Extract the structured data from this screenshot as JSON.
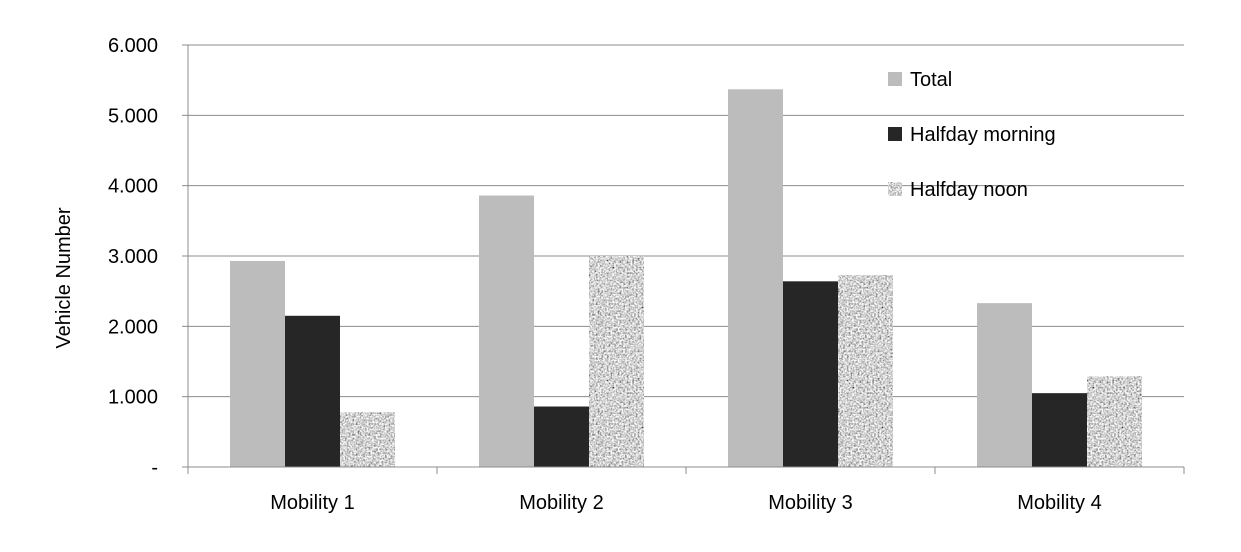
{
  "chart_data": {
    "type": "bar",
    "categories": [
      "Mobility 1",
      "Mobility 2",
      "Mobility 3",
      "Mobility 4"
    ],
    "series": [
      {
        "name": "Total",
        "values": [
          2930,
          3860,
          5370,
          2330
        ],
        "color": "#bcbcbc",
        "pattern": "solid"
      },
      {
        "name": "Halfday morning",
        "values": [
          2150,
          860,
          2640,
          1050
        ],
        "color": "#262626",
        "pattern": "solid"
      },
      {
        "name": "Halfday noon",
        "values": [
          780,
          3000,
          2730,
          1290
        ],
        "color": "#a9a9a9",
        "pattern": "granite"
      }
    ],
    "ylabel": "Vehicle Number",
    "xlabel": "",
    "ylim": [
      0,
      6000
    ],
    "yticks": [
      0,
      1000,
      2000,
      3000,
      4000,
      5000,
      6000
    ],
    "ytick_labels": [
      "-",
      "1.000",
      "2.000",
      "3.000",
      "4.000",
      "5.000",
      "6.000"
    ],
    "grid": true,
    "legend_position": "top-right"
  }
}
